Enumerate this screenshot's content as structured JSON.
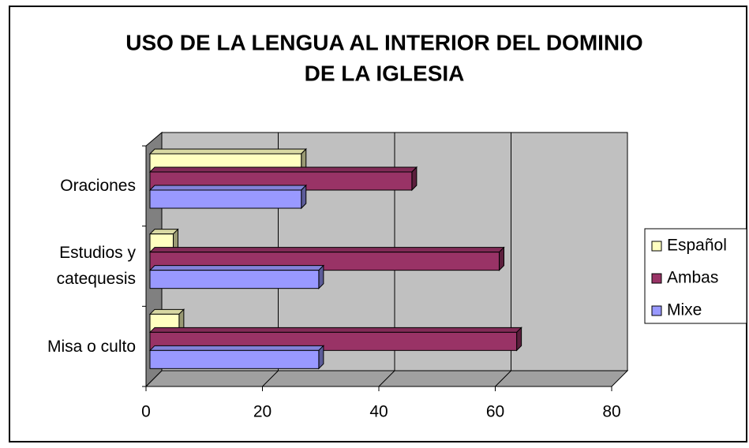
{
  "chart_data": {
    "type": "bar3d_horizontal",
    "title": [
      "USO DE LA LENGUA AL INTERIOR DEL DOMINIO",
      "DE LA IGLESIA"
    ],
    "categories": [
      "Oraciones",
      "Estudios y catequesis",
      "Misa o culto"
    ],
    "series": [
      {
        "name": "Español",
        "color": "#ffffc0",
        "values": [
          26,
          4,
          5
        ]
      },
      {
        "name": "Ambas",
        "color": "#993366",
        "values": [
          45,
          60,
          63
        ]
      },
      {
        "name": "Mixe",
        "color": "#9999ff",
        "values": [
          26,
          29,
          29
        ]
      }
    ],
    "xlim": [
      0,
      80
    ],
    "xticks": [
      0,
      20,
      40,
      60,
      80
    ],
    "grid": true,
    "legend": "right"
  }
}
